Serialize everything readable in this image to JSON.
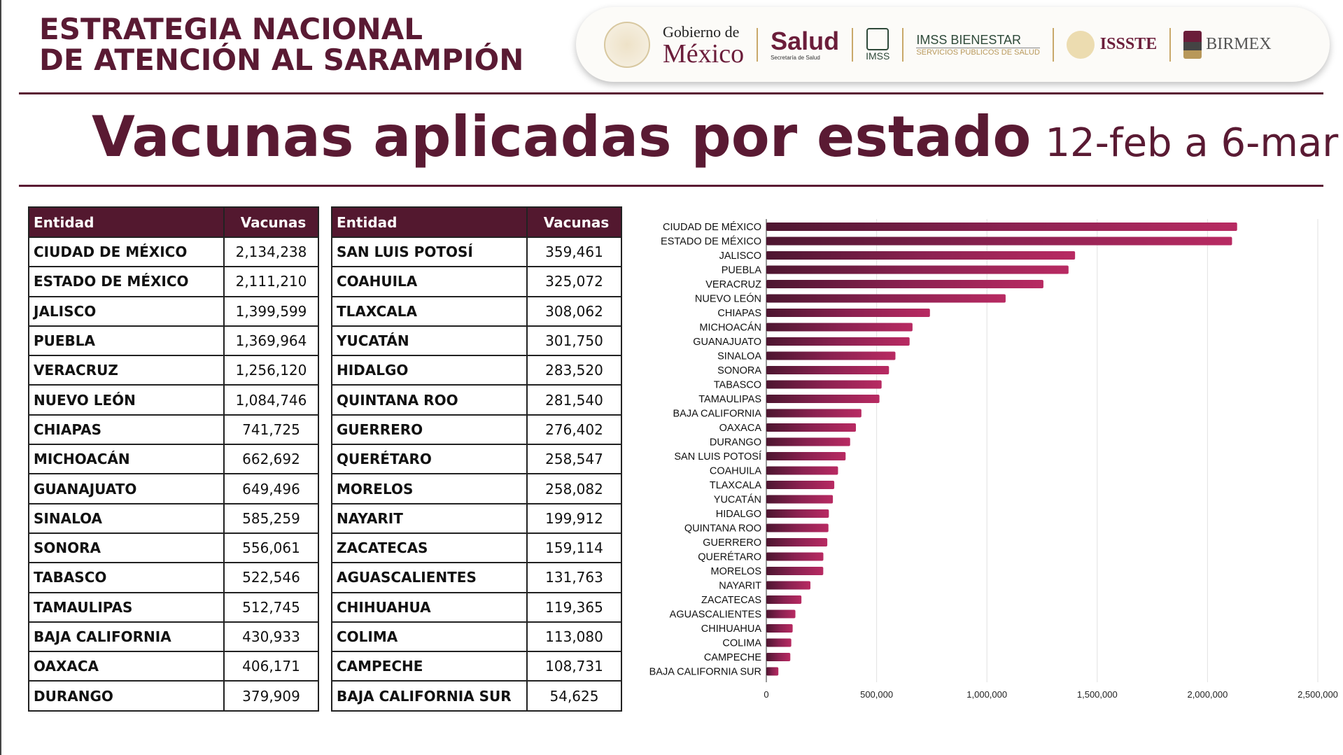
{
  "header": {
    "title_line1": "ESTRATEGIA NACIONAL",
    "title_line2": "DE ATENCIÓN AL SARAMPIÓN",
    "logos": {
      "gob_top": "Gobierno de",
      "gob_bottom": "México",
      "salud": "Salud",
      "salud_sub": "Secretaría de Salud",
      "imss": "IMSS",
      "bienestar": "IMSS BIENESTAR",
      "bienestar_sub": "SERVICIOS PÚBLICOS DE SALUD",
      "issste": "ISSSTE",
      "birmex": "BIRMEX"
    }
  },
  "page_title": "Vacunas aplicadas por estado",
  "page_subtitle": "12-feb a 6-mar",
  "table": {
    "col_entity": "Entidad",
    "col_value": "Vacunas"
  },
  "colors": {
    "brand": "#5a1a33",
    "bar_dark": "#4d1630",
    "bar_light": "#b82a62"
  },
  "chart_data": {
    "type": "bar",
    "orientation": "horizontal",
    "xlim": [
      0,
      2500000
    ],
    "grid": true,
    "xticks": [
      "0",
      "500,000",
      "1,000,000",
      "1,500,000",
      "2,000,000",
      "2,500,000"
    ],
    "xtick_values": [
      0,
      500000,
      1000000,
      1500000,
      2000000,
      2500000
    ],
    "categories": [
      "CIUDAD DE MÉXICO",
      "ESTADO DE MÉXICO",
      "JALISCO",
      "PUEBLA",
      "VERACRUZ",
      "NUEVO LEÓN",
      "CHIAPAS",
      "MICHOACÁN",
      "GUANAJUATO",
      "SINALOA",
      "SONORA",
      "TABASCO",
      "TAMAULIPAS",
      "BAJA CALIFORNIA",
      "OAXACA",
      "DURANGO",
      "SAN LUIS POTOSÍ",
      "COAHUILA",
      "TLAXCALA",
      "YUCATÁN",
      "HIDALGO",
      "QUINTANA ROO",
      "GUERRERO",
      "QUERÉTARO",
      "MORELOS",
      "NAYARIT",
      "ZACATECAS",
      "AGUASCALIENTES",
      "CHIHUAHUA",
      "COLIMA",
      "CAMPECHE",
      "BAJA CALIFORNIA SUR"
    ],
    "table_names": [
      "CIUDAD DE MÉXICO",
      "ESTADO DE MÉXICO",
      "JALISCO",
      "PUEBLA",
      "VERACRUZ",
      "NUEVO LEÓN",
      "CHIAPAS",
      "MICHOACÁN",
      "GUANAJUATO",
      "SINALOA",
      "SONORA",
      "TABASCO",
      "TAMAULIPAS",
      "BAJA CALIFORNIA",
      "OAXACA",
      "DURANGO",
      "SAN LUIS POTOSÍ",
      "COAHUILA",
      "TLAXCALA",
      "YUCATÁN",
      "HIDALGO",
      "QUINTANA ROO",
      "GUERRERO",
      "QUERÉTARO",
      "MORELOS",
      "NAYARIT",
      "ZACATECAS",
      "AGUASCALIENTES",
      "CHIHUAHUA",
      "COLIMA",
      "CAMPECHE",
      "BAJA CALIFORNIA SUR"
    ],
    "values": [
      2134238,
      2111210,
      1399599,
      1369964,
      1256120,
      1084746,
      741725,
      662692,
      649496,
      585259,
      556061,
      522546,
      512745,
      430933,
      406171,
      379909,
      359461,
      325072,
      308062,
      301750,
      283520,
      281540,
      276402,
      258547,
      258082,
      199912,
      159114,
      131763,
      119365,
      113080,
      108731,
      54625
    ],
    "value_labels": [
      "2,134,238",
      "2,111,210",
      "1,399,599",
      "1,369,964",
      "1,256,120",
      "1,084,746",
      "741,725",
      "662,692",
      "649,496",
      "585,259",
      "556,061",
      "522,546",
      "512,745",
      "430,933",
      "406,171",
      "379,909",
      "359,461",
      "325,072",
      "308,062",
      "301,750",
      "283,520",
      "281,540",
      "276,402",
      "258,547",
      "258,082",
      "199,912",
      "159,114",
      "131,763",
      "119,365",
      "113,080",
      "108,731",
      "54,625"
    ]
  }
}
